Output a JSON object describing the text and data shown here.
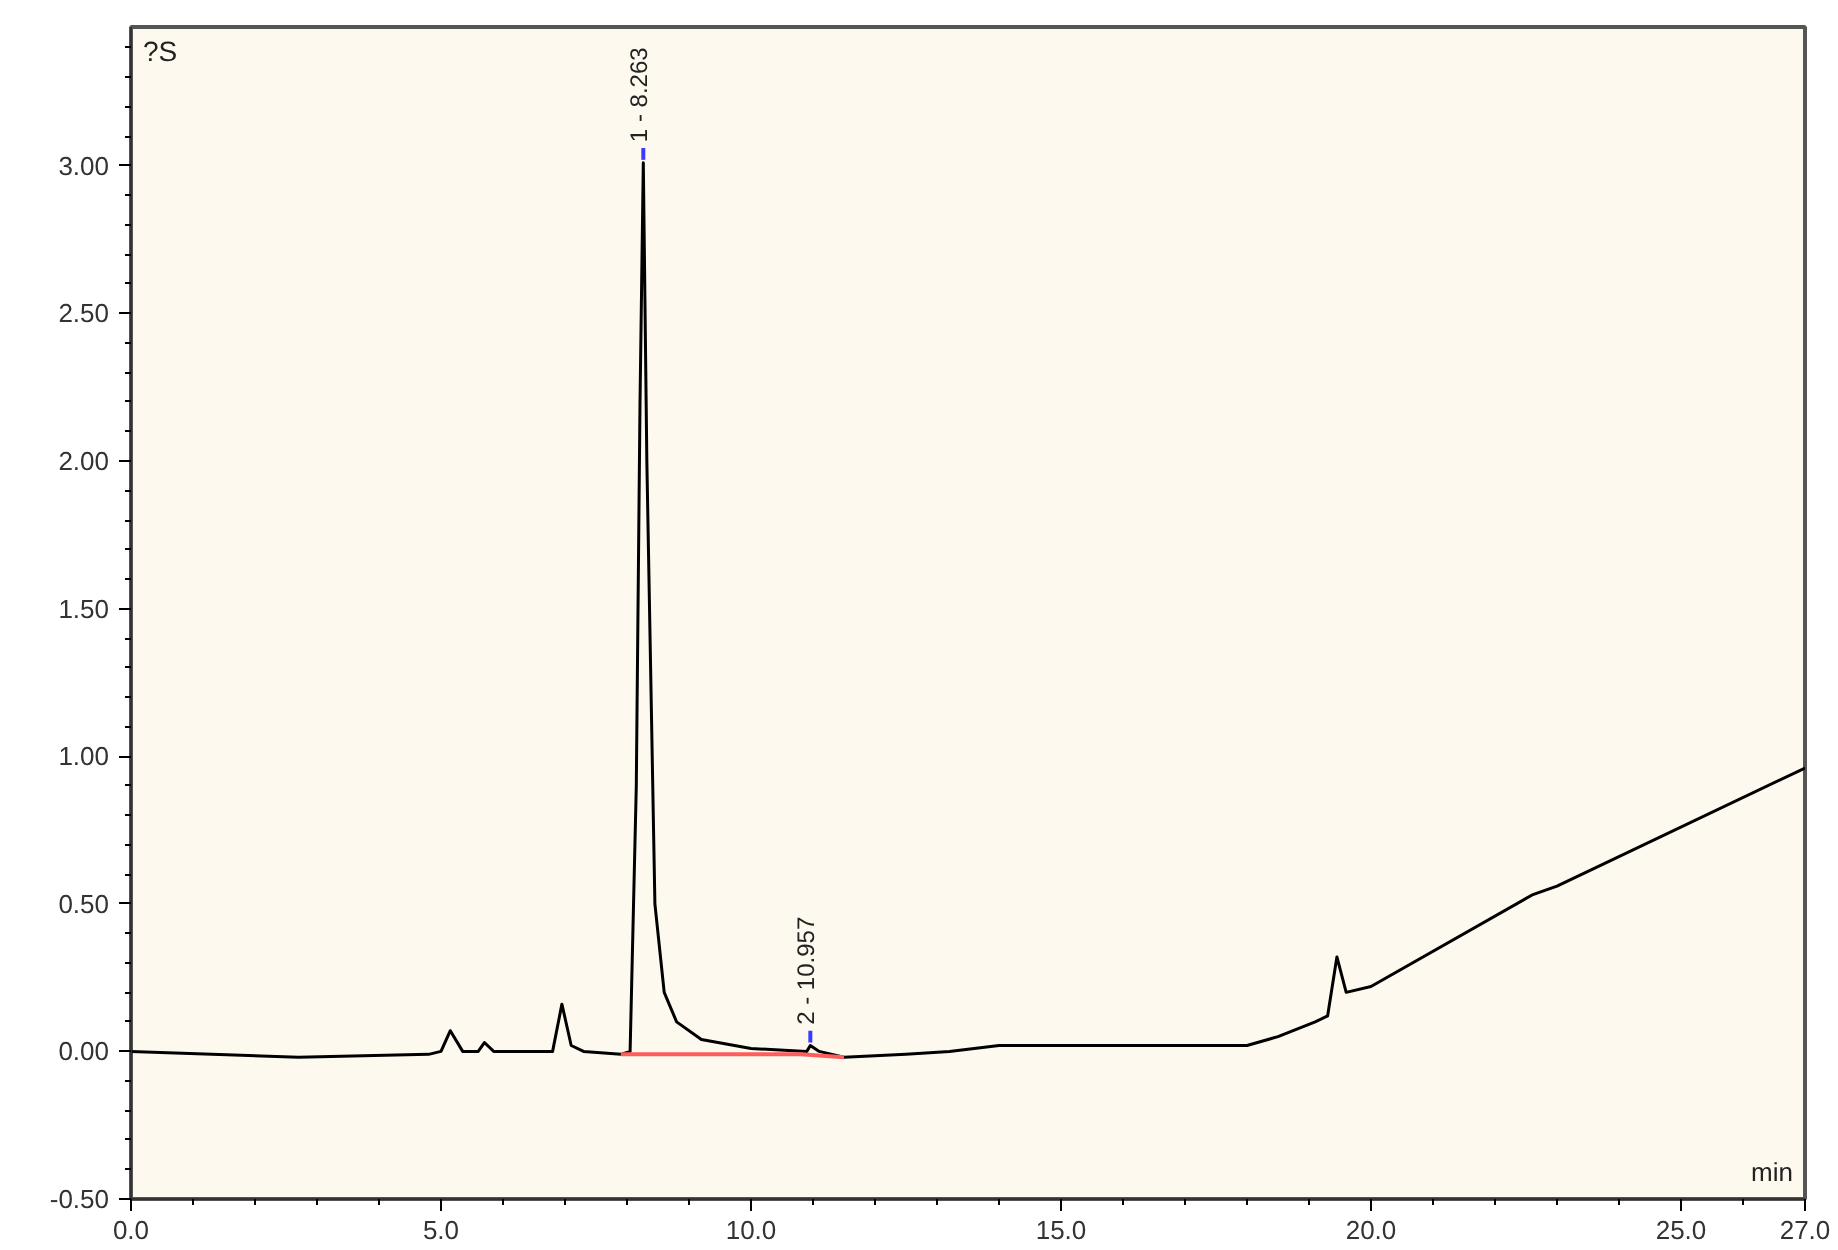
{
  "chart_data": {
    "type": "line",
    "ylabel": "?S",
    "xlabel": "min",
    "xlim": [
      0,
      27
    ],
    "ylim": [
      -0.5,
      3.47
    ],
    "xticks": [
      {
        "value": 0,
        "label": "0.0"
      },
      {
        "value": 5,
        "label": "5.0"
      },
      {
        "value": 10,
        "label": "10.0"
      },
      {
        "value": 15,
        "label": "15.0"
      },
      {
        "value": 20,
        "label": "20.0"
      },
      {
        "value": 25,
        "label": "25.0"
      },
      {
        "value": 27,
        "label": "27.0"
      }
    ],
    "yticks": [
      {
        "value": -0.5,
        "label": "-0.50"
      },
      {
        "value": 0,
        "label": "0.00"
      },
      {
        "value": 0.5,
        "label": "0.50"
      },
      {
        "value": 1,
        "label": "1.00"
      },
      {
        "value": 1.5,
        "label": "1.50"
      },
      {
        "value": 2,
        "label": "2.00"
      },
      {
        "value": 2.5,
        "label": "2.50"
      },
      {
        "value": 3,
        "label": "3.00"
      }
    ],
    "grid": false,
    "marker": "none",
    "line_style": "solid",
    "series": [
      {
        "color": "#000000",
        "x": [
          0,
          2.7,
          4.8,
          5.0,
          5.15,
          5.35,
          5.6,
          5.7,
          5.85,
          6.8,
          6.95,
          7.1,
          7.3,
          7.9,
          8.05,
          8.15,
          8.21,
          8.263,
          8.32,
          8.45,
          8.6,
          8.8,
          9.2,
          10,
          10.9,
          10.957,
          11.1,
          11.5,
          12.5,
          13.2,
          14,
          15,
          18,
          18.5,
          19.1,
          19.3,
          19.45,
          19.6,
          20,
          22.6,
          23,
          27
        ],
        "values": [
          0.0,
          -0.02,
          -0.01,
          0.0,
          0.07,
          0.0,
          0.0,
          0.03,
          0.0,
          0.0,
          0.16,
          0.02,
          0.0,
          -0.01,
          0.0,
          0.9,
          2.2,
          3.01,
          2.0,
          0.5,
          0.2,
          0.1,
          0.04,
          0.01,
          0.0,
          0.02,
          0.0,
          -0.02,
          -0.01,
          0.0,
          0.02,
          0.02,
          0.02,
          0.05,
          0.1,
          0.12,
          0.32,
          0.2,
          0.22,
          0.53,
          0.56,
          0.96
        ]
      },
      {
        "color": "#ff5c5c",
        "x": [
          7.9,
          10.8,
          11.5
        ],
        "values": [
          -0.01,
          -0.01,
          -0.02
        ]
      }
    ],
    "annotations": [
      {
        "text": "1 - 8.263",
        "x": 8.263,
        "y": 3.01
      },
      {
        "text": "2 - 10.957",
        "x": 10.957,
        "y": 0.02
      }
    ]
  }
}
